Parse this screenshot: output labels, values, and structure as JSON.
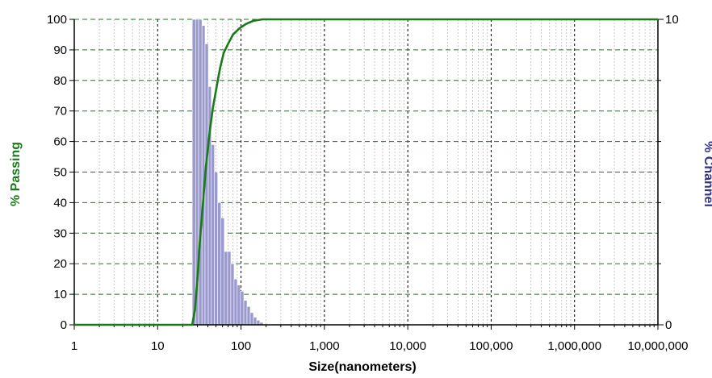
{
  "chart_data": {
    "type": "bar",
    "xlabel": "Size(nanometers)",
    "ylabel": "% Passing",
    "y2label": "% Channel",
    "x_scale": "log",
    "xlim": [
      1,
      10000000
    ],
    "ylim": [
      0,
      100
    ],
    "y2lim": [
      0,
      10
    ],
    "grid": true,
    "x_ticks": [
      {
        "value": 1,
        "label": "1"
      },
      {
        "value": 10,
        "label": "10"
      },
      {
        "value": 100,
        "label": "100"
      },
      {
        "value": 1000,
        "label": "1,000"
      },
      {
        "value": 10000,
        "label": "10,000"
      },
      {
        "value": 100000,
        "label": "100,000"
      },
      {
        "value": 1000000,
        "label": "1,000,000"
      },
      {
        "value": 10000000,
        "label": "10,000,000"
      }
    ],
    "y_ticks": [
      "0",
      "10",
      "20",
      "30",
      "40",
      "50",
      "60",
      "70",
      "80",
      "90",
      "100"
    ],
    "y2_ticks": [
      {
        "value": 0,
        "label": "0"
      },
      {
        "value": 10,
        "label": "10"
      }
    ],
    "series": [
      {
        "kind": "bar",
        "axis": "right",
        "color": "#9999cc",
        "bins": [
          {
            "x0": 26,
            "x1": 28.5,
            "y": 10
          },
          {
            "x0": 28.5,
            "x1": 31,
            "y": 10
          },
          {
            "x0": 31,
            "x1": 34,
            "y": 10
          },
          {
            "x0": 34,
            "x1": 37,
            "y": 9.8
          },
          {
            "x0": 37,
            "x1": 40.5,
            "y": 9.2
          },
          {
            "x0": 40.5,
            "x1": 44,
            "y": 7.8
          },
          {
            "x0": 44,
            "x1": 48,
            "y": 5.9
          },
          {
            "x0": 48,
            "x1": 52.5,
            "y": 5.0
          },
          {
            "x0": 52.5,
            "x1": 57.5,
            "y": 4.0
          },
          {
            "x0": 57.5,
            "x1": 63,
            "y": 3.5
          },
          {
            "x0": 63,
            "x1": 69,
            "y": 2.4
          },
          {
            "x0": 69,
            "x1": 75.5,
            "y": 2.4
          },
          {
            "x0": 75.5,
            "x1": 82.5,
            "y": 2.0
          },
          {
            "x0": 82.5,
            "x1": 90,
            "y": 1.5
          },
          {
            "x0": 90,
            "x1": 98.5,
            "y": 1.3
          },
          {
            "x0": 98.5,
            "x1": 108,
            "y": 1.1
          },
          {
            "x0": 108,
            "x1": 118,
            "y": 0.8
          },
          {
            "x0": 118,
            "x1": 129,
            "y": 0.6
          },
          {
            "x0": 129,
            "x1": 141,
            "y": 0.4
          },
          {
            "x0": 141,
            "x1": 154,
            "y": 0.25
          },
          {
            "x0": 154,
            "x1": 168,
            "y": 0.15
          },
          {
            "x0": 168,
            "x1": 184,
            "y": 0.08
          }
        ]
      },
      {
        "kind": "line",
        "axis": "left",
        "color": "#1a7a1a",
        "points": [
          {
            "x": 1,
            "y": 0
          },
          {
            "x": 26,
            "y": 0
          },
          {
            "x": 28,
            "y": 5
          },
          {
            "x": 30,
            "y": 15
          },
          {
            "x": 32,
            "y": 27
          },
          {
            "x": 35,
            "y": 40
          },
          {
            "x": 38,
            "y": 52
          },
          {
            "x": 42,
            "y": 63
          },
          {
            "x": 46,
            "y": 71
          },
          {
            "x": 51,
            "y": 78
          },
          {
            "x": 56,
            "y": 84
          },
          {
            "x": 62,
            "y": 89
          },
          {
            "x": 70,
            "y": 92
          },
          {
            "x": 80,
            "y": 95
          },
          {
            "x": 95,
            "y": 97
          },
          {
            "x": 115,
            "y": 98.5
          },
          {
            "x": 140,
            "y": 99.5
          },
          {
            "x": 180,
            "y": 100
          },
          {
            "x": 10000000,
            "y": 100
          }
        ]
      }
    ]
  }
}
